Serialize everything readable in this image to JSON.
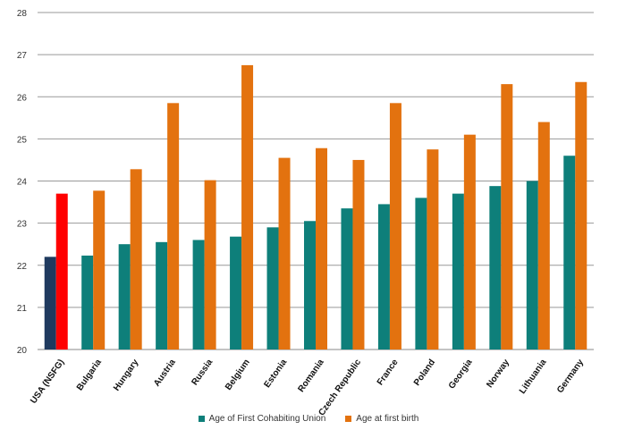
{
  "chart_data": {
    "type": "bar",
    "categories": [
      "USA (NSFG)",
      "Bulgaria",
      "Hungary",
      "Austria",
      "Russia",
      "Belgium",
      "Estonia",
      "Romania",
      "Czech Republic",
      "France",
      "Poland",
      "Georgia",
      "Norway",
      "Lithuania",
      "Germany"
    ],
    "series": [
      {
        "name": "Age of First Cohabiting Union",
        "color": "#0e7f7a",
        "values": [
          22.2,
          22.23,
          22.5,
          22.55,
          22.6,
          22.68,
          22.9,
          23.05,
          23.35,
          23.45,
          23.6,
          23.7,
          23.88,
          24.0,
          24.6
        ]
      },
      {
        "name": "Age at first birth",
        "color": "#e3720f",
        "values": [
          23.7,
          23.77,
          24.28,
          25.85,
          24.02,
          26.75,
          24.55,
          24.78,
          24.5,
          25.85,
          24.75,
          25.1,
          26.3,
          25.4,
          26.35
        ]
      }
    ],
    "highlight": {
      "category": "USA (NSFG)",
      "colors": [
        "#1f3a5f",
        "#ff0000"
      ]
    },
    "ylim": [
      20,
      28
    ],
    "yticks": [
      "20",
      "21",
      "22",
      "23",
      "24",
      "25",
      "26",
      "27",
      "28"
    ],
    "grid": true,
    "legend_position": "bottom"
  }
}
